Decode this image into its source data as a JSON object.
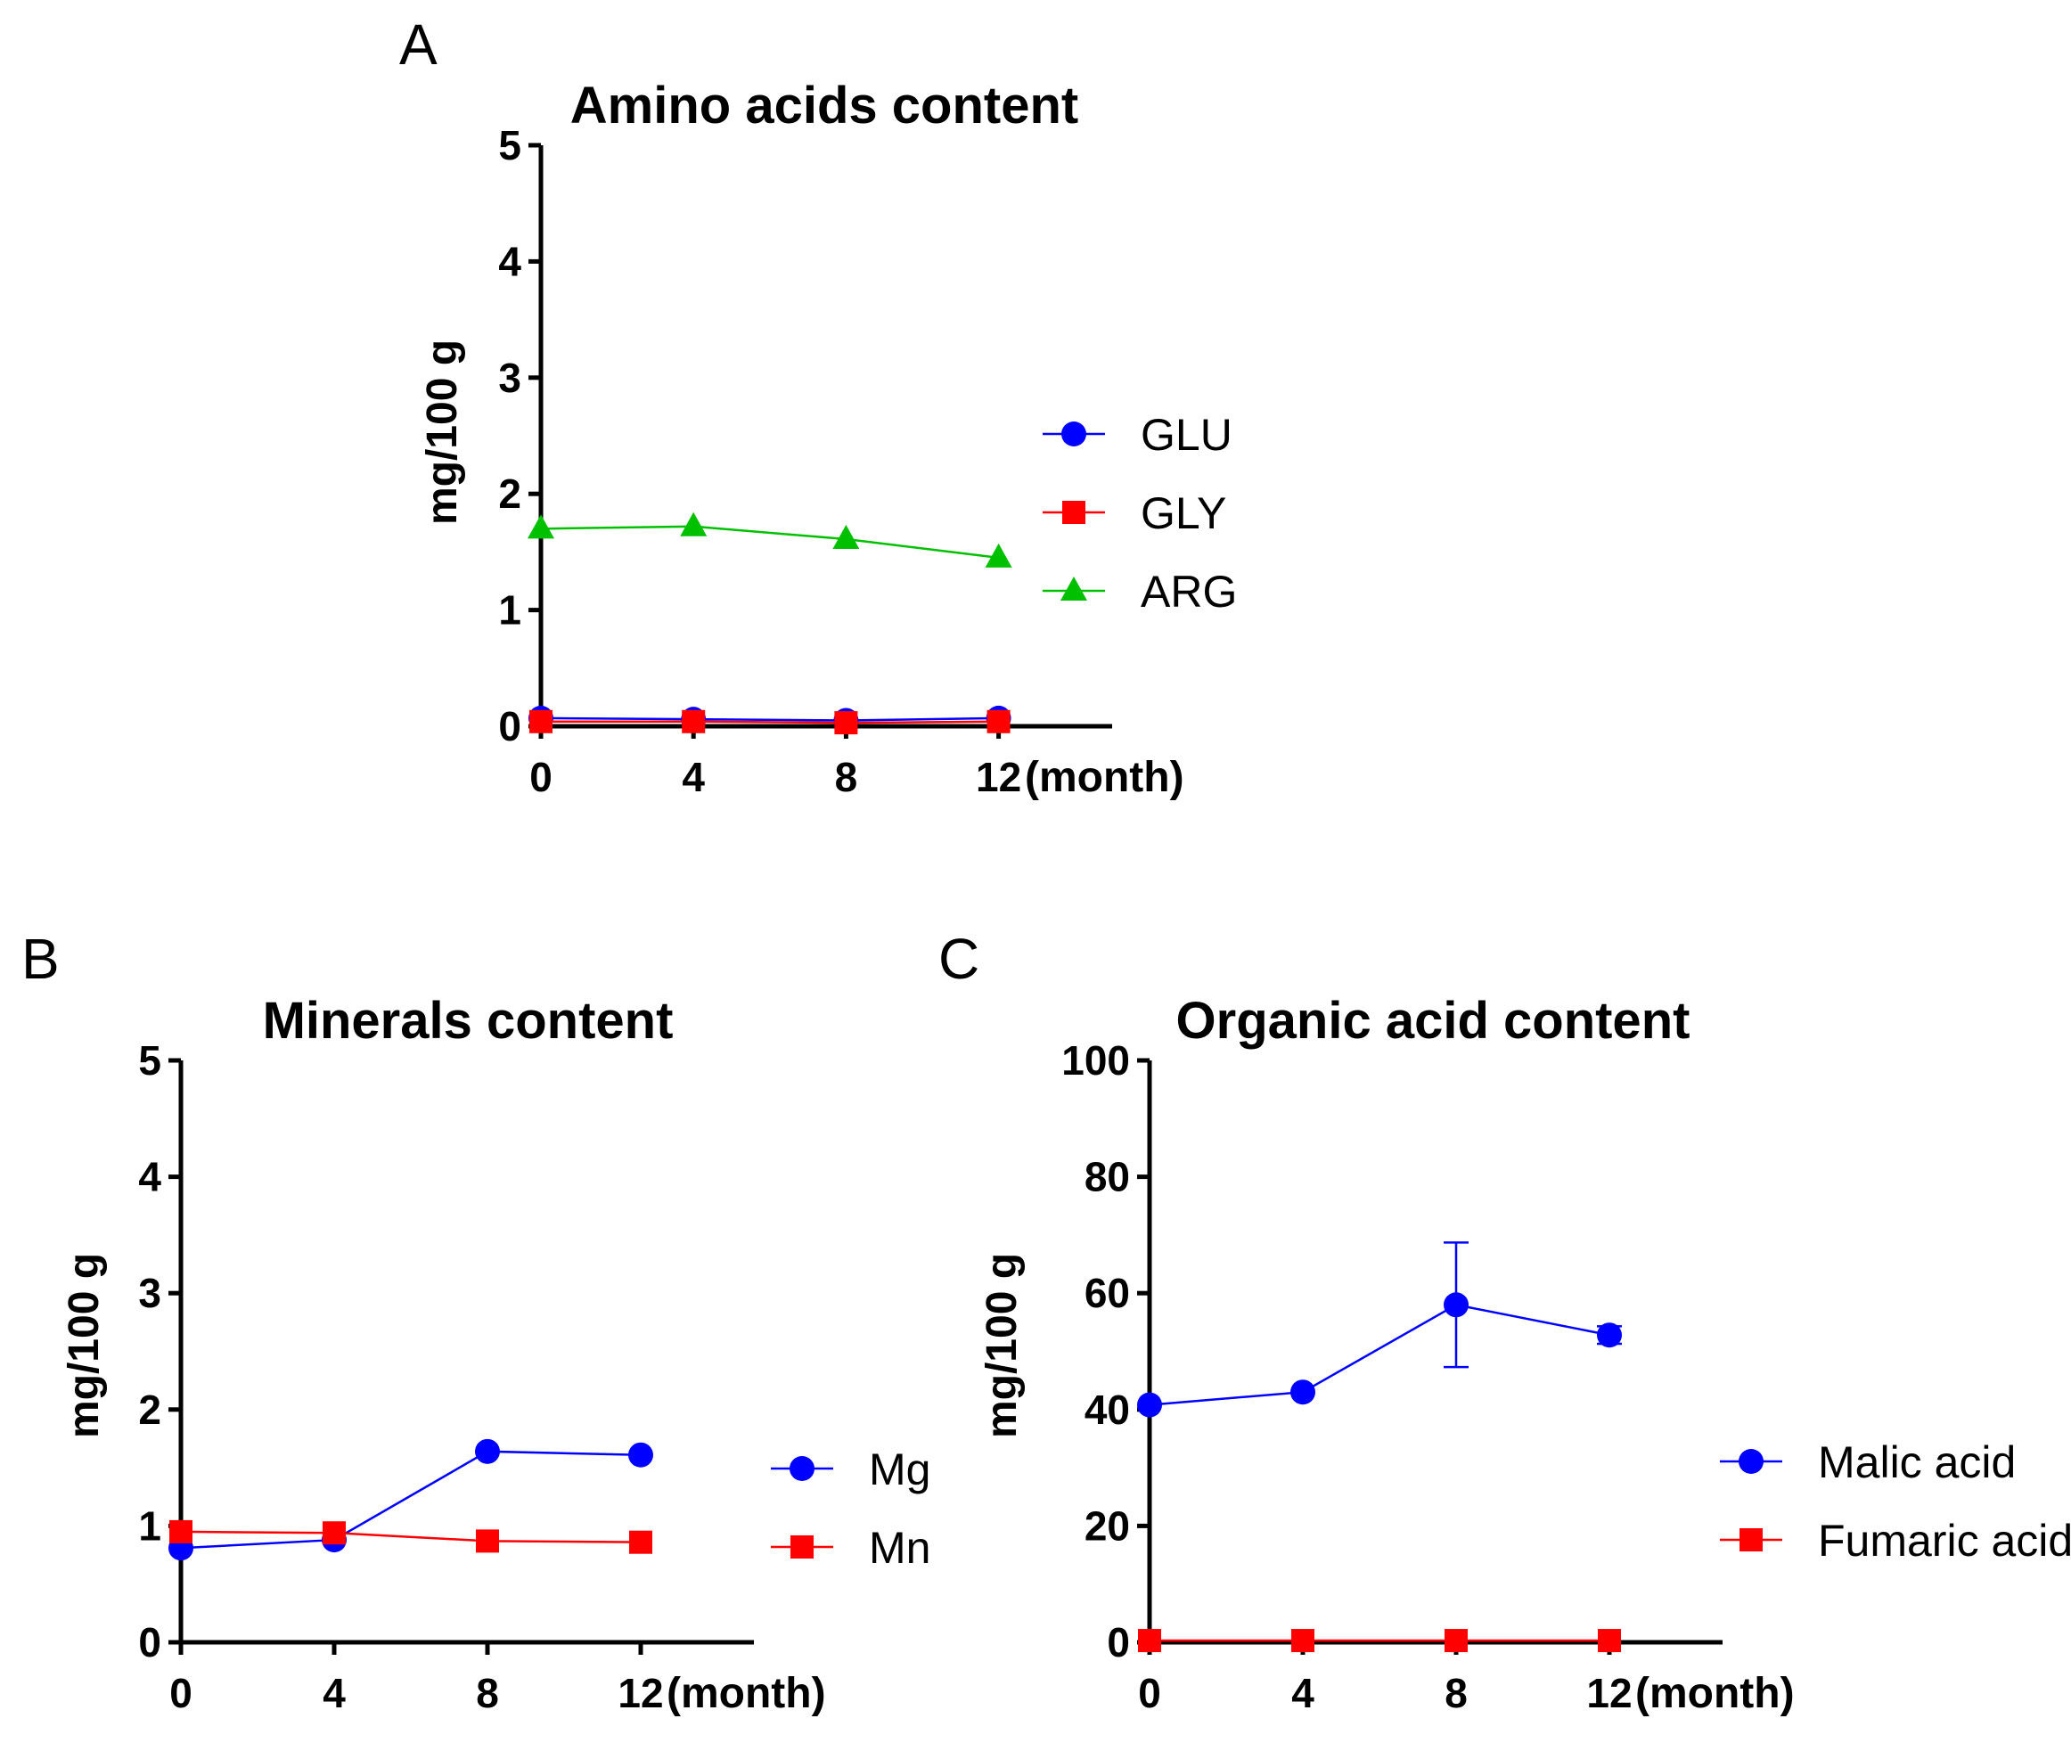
{
  "chart_data": [
    {
      "panel": "A",
      "type": "line",
      "title": "Amino acids content",
      "ylabel": "mg/100 g",
      "xlabel_suffix": "(month)",
      "categories": [
        "0",
        "4",
        "8",
        "12"
      ],
      "x": [
        0,
        4,
        8,
        12
      ],
      "xlim": [
        0,
        15
      ],
      "ylim": [
        0,
        5
      ],
      "yticks": [
        0,
        1,
        2,
        3,
        4,
        5
      ],
      "series": [
        {
          "name": "GLU",
          "color": "#0000ff",
          "marker": "circle",
          "values": [
            0.07,
            0.06,
            0.05,
            0.07
          ]
        },
        {
          "name": "GLY",
          "color": "#ff0000",
          "marker": "square",
          "values": [
            0.04,
            0.04,
            0.03,
            0.04
          ]
        },
        {
          "name": "ARG",
          "color": "#00c000",
          "marker": "triangle",
          "values": [
            1.7,
            1.72,
            1.61,
            1.45
          ]
        }
      ]
    },
    {
      "panel": "B",
      "type": "line",
      "title": "Minerals content",
      "ylabel": "mg/100 g",
      "xlabel_suffix": "(month)",
      "categories": [
        "0",
        "4",
        "8",
        "12"
      ],
      "x": [
        0,
        4,
        8,
        12
      ],
      "xlim": [
        0,
        15
      ],
      "ylim": [
        0,
        5
      ],
      "yticks": [
        0,
        1,
        2,
        3,
        4,
        5
      ],
      "series": [
        {
          "name": "Mg",
          "color": "#0000ff",
          "marker": "circle",
          "values": [
            0.81,
            0.88,
            1.64,
            1.61
          ]
        },
        {
          "name": "Mn",
          "color": "#ff0000",
          "marker": "square",
          "values": [
            0.95,
            0.94,
            0.87,
            0.86
          ]
        }
      ]
    },
    {
      "panel": "C",
      "type": "line",
      "title": "Organic acid content",
      "ylabel": "mg/100 g",
      "xlabel_suffix": "(month)",
      "categories": [
        "0",
        "4",
        "8",
        "12"
      ],
      "x": [
        0,
        4,
        8,
        12
      ],
      "xlim": [
        0,
        15
      ],
      "ylim": [
        0,
        100
      ],
      "yticks": [
        0,
        20,
        40,
        60,
        80,
        100
      ],
      "series": [
        {
          "name": "Malic acid",
          "color": "#0000ff",
          "marker": "circle",
          "values": [
            40.8,
            43.0,
            58.0,
            52.8
          ],
          "errors": [
            0,
            0,
            10.7,
            1.5
          ]
        },
        {
          "name": "Fumaric acid",
          "color": "#ff0000",
          "marker": "square",
          "values": [
            0.3,
            0.3,
            0.3,
            0.3
          ]
        }
      ]
    }
  ]
}
